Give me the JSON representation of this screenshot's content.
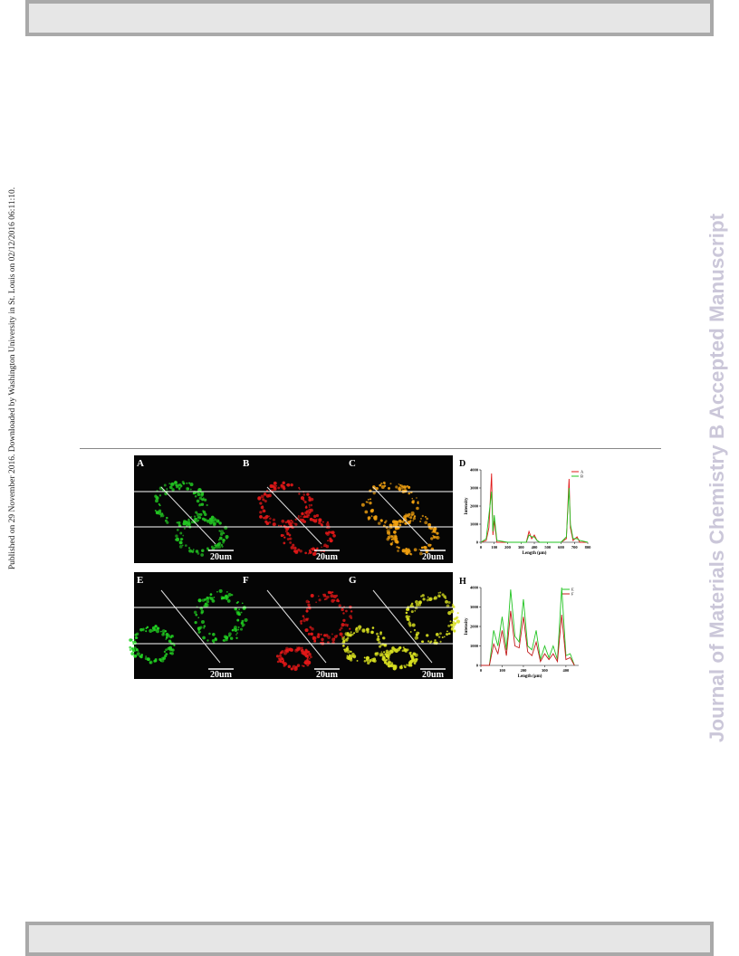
{
  "side_note": "Published on 29 November 2016. Downloaded by Washington University in St. Louis on 02/12/2016 06:11:10.",
  "watermark": "Journal of Materials Chemistry B Accepted Manuscript",
  "figure": {
    "panels": [
      {
        "label": "A",
        "scale": "20um",
        "color": "#22c422"
      },
      {
        "label": "B",
        "scale": "20um",
        "color": "#e01818"
      },
      {
        "label": "C",
        "scale": "20um",
        "color": "#f0a010"
      },
      {
        "label": "E",
        "scale": "20um",
        "color": "#22d422"
      },
      {
        "label": "F",
        "scale": "20um",
        "color": "#e01818"
      },
      {
        "label": "G",
        "scale": "20um",
        "color": "#d8e020"
      }
    ],
    "plots": [
      {
        "label": "D",
        "type": "line",
        "xlabel": "Length (μm)",
        "ylabel": "Intensity",
        "xlim": [
          0,
          800
        ],
        "xticks": [
          0,
          100,
          200,
          300,
          400,
          500,
          600,
          700,
          800
        ],
        "ylim": [
          0,
          4000
        ],
        "yticks": [
          0,
          1000,
          2000,
          3000,
          4000
        ],
        "x": [
          0,
          40,
          60,
          80,
          90,
          100,
          120,
          200,
          340,
          360,
          380,
          400,
          420,
          440,
          600,
          640,
          660,
          670,
          690,
          720,
          740,
          800
        ],
        "series": [
          {
            "name": "A",
            "color": "#e01818",
            "values": [
              0,
              100,
              800,
              3800,
              400,
              1200,
              0,
              0,
              0,
              600,
              200,
              400,
              100,
              0,
              0,
              200,
              3500,
              800,
              100,
              300,
              0,
              0
            ]
          },
          {
            "name": "B",
            "color": "#22c422",
            "values": [
              0,
              200,
              1500,
              2800,
              600,
              1500,
              100,
              0,
              0,
              400,
              300,
              300,
              100,
              0,
              0,
              300,
              3000,
              1000,
              200,
              200,
              100,
              0
            ]
          }
        ]
      },
      {
        "label": "H",
        "type": "line",
        "xlabel": "Length (μm)",
        "ylabel": "Intensity",
        "xlim": [
          0,
          460
        ],
        "xticks": [
          0,
          100,
          200,
          300,
          400
        ],
        "ylim": [
          0,
          4000
        ],
        "yticks": [
          0,
          1000,
          2000,
          3000,
          4000
        ],
        "x": [
          0,
          40,
          60,
          80,
          100,
          120,
          140,
          160,
          180,
          200,
          220,
          240,
          260,
          280,
          300,
          320,
          340,
          360,
          380,
          400,
          420,
          440
        ],
        "series": [
          {
            "name": "E",
            "color": "#22c422",
            "values": [
              0,
              0,
              1800,
              1000,
              2500,
              800,
              3900,
              1500,
              1200,
              3400,
              1000,
              800,
              1800,
              300,
              1000,
              400,
              1000,
              300,
              4000,
              500,
              600,
              0
            ]
          },
          {
            "name": "F",
            "color": "#c01818",
            "values": [
              0,
              0,
              1100,
              600,
              1800,
              500,
              2800,
              1000,
              900,
              2500,
              700,
              500,
              1200,
              200,
              600,
              300,
              600,
              200,
              2600,
              300,
              400,
              0
            ]
          }
        ]
      }
    ]
  }
}
